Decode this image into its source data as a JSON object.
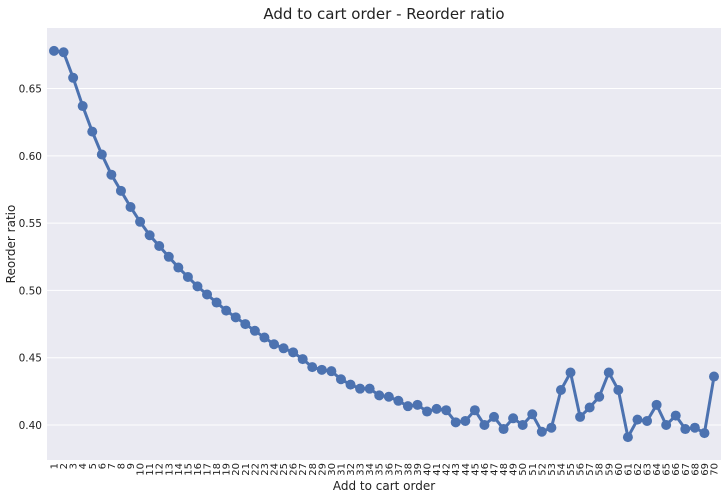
{
  "chart_data": {
    "type": "line",
    "title": "Add to cart order - Reorder ratio",
    "xlabel": "Add to cart order",
    "ylabel": "Reorder ratio",
    "categories": [
      "1",
      "2",
      "3",
      "4",
      "5",
      "6",
      "7",
      "8",
      "9",
      "10",
      "11",
      "12",
      "13",
      "14",
      "15",
      "16",
      "17",
      "18",
      "19",
      "20",
      "21",
      "22",
      "23",
      "24",
      "25",
      "26",
      "27",
      "28",
      "29",
      "30",
      "31",
      "32",
      "33",
      "34",
      "35",
      "36",
      "37",
      "38",
      "39",
      "40",
      "41",
      "42",
      "43",
      "44",
      "45",
      "46",
      "47",
      "48",
      "49",
      "50",
      "51",
      "52",
      "53",
      "54",
      "55",
      "56",
      "57",
      "58",
      "59",
      "60",
      "61",
      "62",
      "63",
      "64",
      "65",
      "66",
      "67",
      "68",
      "69",
      "70"
    ],
    "values": [
      0.678,
      0.677,
      0.658,
      0.637,
      0.618,
      0.601,
      0.586,
      0.574,
      0.562,
      0.551,
      0.541,
      0.533,
      0.525,
      0.517,
      0.51,
      0.503,
      0.497,
      0.491,
      0.485,
      0.48,
      0.475,
      0.47,
      0.465,
      0.46,
      0.457,
      0.454,
      0.449,
      0.443,
      0.441,
      0.44,
      0.434,
      0.43,
      0.427,
      0.427,
      0.422,
      0.421,
      0.418,
      0.414,
      0.415,
      0.41,
      0.412,
      0.411,
      0.402,
      0.403,
      0.411,
      0.4,
      0.406,
      0.397,
      0.405,
      0.4,
      0.408,
      0.395,
      0.398,
      0.426,
      0.439,
      0.406,
      0.413,
      0.421,
      0.439,
      0.426,
      0.391,
      0.404,
      0.403,
      0.415,
      0.4,
      0.407,
      0.397,
      0.398,
      0.394,
      0.436
    ],
    "yticks": [
      "0.40",
      "0.45",
      "0.50",
      "0.55",
      "0.60",
      "0.65"
    ],
    "ylim": [
      0.374,
      0.695
    ],
    "grid": true,
    "colors": {
      "background": "#EAEAF2",
      "grid": "#FFFFFF",
      "series": "#4C72B0"
    }
  }
}
